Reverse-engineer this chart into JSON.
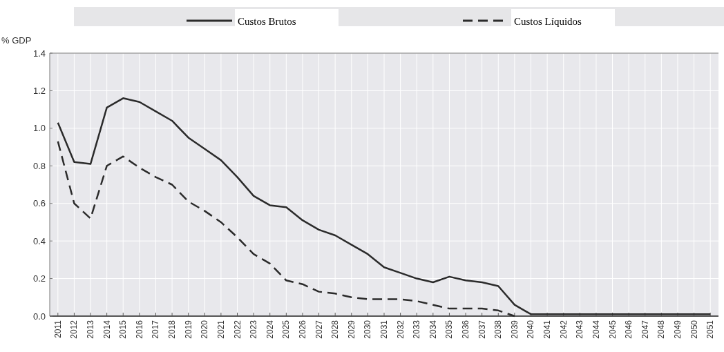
{
  "chart_data": {
    "type": "line",
    "ylabel": "% GDP",
    "categories": [
      "2011",
      "2012",
      "2013",
      "2014",
      "2015",
      "2016",
      "2017",
      "2018",
      "2019",
      "2020",
      "2021",
      "2022",
      "2023",
      "2024",
      "2025",
      "2026",
      "2027",
      "2028",
      "2029",
      "2030",
      "2031",
      "2032",
      "2033",
      "2034",
      "2035",
      "2036",
      "2037",
      "2038",
      "2039",
      "2040",
      "2041",
      "2042",
      "2043",
      "2044",
      "2045",
      "2046",
      "2047",
      "2048",
      "2049",
      "2050",
      "2051"
    ],
    "series": [
      {
        "name": "Custos Brutos",
        "color": "#2b2b2b",
        "line_style": "solid",
        "values": [
          1.03,
          0.82,
          0.81,
          1.11,
          1.16,
          1.14,
          1.09,
          1.04,
          0.95,
          0.89,
          0.83,
          0.74,
          0.64,
          0.59,
          0.58,
          0.51,
          0.46,
          0.43,
          0.38,
          0.33,
          0.26,
          0.23,
          0.2,
          0.18,
          0.21,
          0.19,
          0.18,
          0.16,
          0.06,
          0.01,
          0.01,
          0.01,
          0.01,
          0.01,
          0.01,
          0.01,
          0.01,
          0.01,
          0.01,
          0.01,
          0.01
        ]
      },
      {
        "name": "Custos Líquidos",
        "color": "#2b2b2b",
        "line_style": "dashed",
        "values": [
          0.93,
          0.6,
          0.52,
          0.8,
          0.85,
          0.79,
          0.74,
          0.7,
          0.61,
          0.56,
          0.5,
          0.42,
          0.33,
          0.28,
          0.19,
          0.17,
          0.13,
          0.12,
          0.1,
          0.09,
          0.09,
          0.09,
          0.08,
          0.06,
          0.04,
          0.04,
          0.04,
          0.03,
          0.0,
          null,
          null,
          null,
          null,
          null,
          null,
          null,
          null,
          null,
          null,
          null,
          null
        ]
      }
    ],
    "ylim": [
      0,
      1.4
    ],
    "yticks": [
      {
        "value": 0,
        "label": "0.0"
      },
      {
        "value": 0.2,
        "label": "0.2"
      },
      {
        "value": 0.4,
        "label": "0.4"
      },
      {
        "value": 0.6,
        "label": "0.6"
      },
      {
        "value": 0.8,
        "label": "0.8"
      },
      {
        "value": 1,
        "label": "1.0"
      },
      {
        "value": 1.2,
        "label": "1.2"
      },
      {
        "value": 1.4,
        "label": "1.4"
      }
    ],
    "grid": true,
    "legend": "top"
  }
}
